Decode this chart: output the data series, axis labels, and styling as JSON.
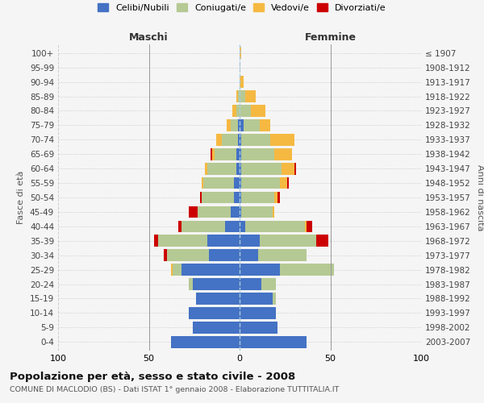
{
  "age_groups": [
    "0-4",
    "5-9",
    "10-14",
    "15-19",
    "20-24",
    "25-29",
    "30-34",
    "35-39",
    "40-44",
    "45-49",
    "50-54",
    "55-59",
    "60-64",
    "65-69",
    "70-74",
    "75-79",
    "80-84",
    "85-89",
    "90-94",
    "95-99",
    "100+"
  ],
  "birth_years": [
    "2003-2007",
    "1998-2002",
    "1993-1997",
    "1988-1992",
    "1983-1987",
    "1978-1982",
    "1973-1977",
    "1968-1972",
    "1963-1967",
    "1958-1962",
    "1953-1957",
    "1948-1952",
    "1943-1947",
    "1938-1942",
    "1933-1937",
    "1928-1932",
    "1923-1927",
    "1918-1922",
    "1913-1917",
    "1908-1912",
    "≤ 1907"
  ],
  "males": {
    "celibe": [
      38,
      26,
      28,
      24,
      26,
      32,
      17,
      18,
      8,
      5,
      3,
      3,
      2,
      2,
      1,
      1,
      0,
      0,
      0,
      0,
      0
    ],
    "coniugato": [
      0,
      0,
      0,
      0,
      2,
      5,
      23,
      27,
      24,
      18,
      18,
      17,
      16,
      12,
      9,
      4,
      2,
      1,
      0,
      0,
      0
    ],
    "vedovo": [
      0,
      0,
      0,
      0,
      0,
      1,
      0,
      0,
      0,
      0,
      0,
      1,
      1,
      1,
      3,
      2,
      2,
      1,
      0,
      0,
      0
    ],
    "divorziato": [
      0,
      0,
      0,
      0,
      0,
      0,
      2,
      2,
      2,
      5,
      1,
      0,
      0,
      1,
      0,
      0,
      0,
      0,
      0,
      0,
      0
    ]
  },
  "females": {
    "nubile": [
      37,
      21,
      20,
      18,
      12,
      22,
      10,
      11,
      3,
      1,
      1,
      1,
      1,
      1,
      1,
      2,
      0,
      0,
      0,
      0,
      0
    ],
    "coniugata": [
      0,
      0,
      0,
      2,
      8,
      30,
      27,
      31,
      33,
      17,
      18,
      21,
      22,
      18,
      16,
      9,
      6,
      3,
      0,
      0,
      0
    ],
    "vedova": [
      0,
      0,
      0,
      0,
      0,
      0,
      0,
      0,
      1,
      1,
      2,
      4,
      7,
      10,
      13,
      6,
      8,
      6,
      2,
      0,
      1
    ],
    "divorziata": [
      0,
      0,
      0,
      0,
      0,
      0,
      0,
      7,
      3,
      0,
      1,
      1,
      1,
      0,
      0,
      0,
      0,
      0,
      0,
      0,
      0
    ]
  },
  "colors": {
    "celibe": "#4472c4",
    "coniugato": "#b5c994",
    "vedovo": "#f5b942",
    "divorziato": "#cc0000"
  },
  "title": "Popolazione per età, sesso e stato civile - 2008",
  "subtitle": "COMUNE DI MACLODIO (BS) - Dati ISTAT 1° gennaio 2008 - Elaborazione TUTTITALIA.IT",
  "xlabel_left": "Maschi",
  "xlabel_right": "Femmine",
  "ylabel_left": "Fasce di età",
  "ylabel_right": "Anni di nascita",
  "xlim": 100,
  "bg_color": "#f5f5f5",
  "grid_color": "#cccccc"
}
